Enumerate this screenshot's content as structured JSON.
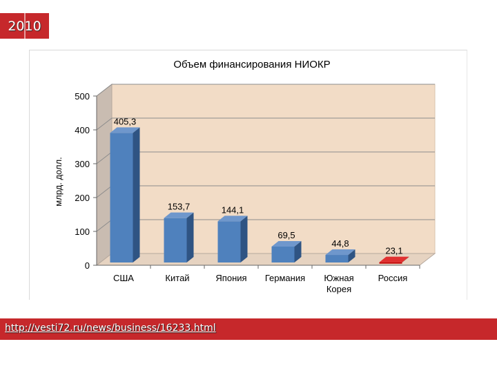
{
  "badge": {
    "year": "2010"
  },
  "source": {
    "url": "http://vesti72.ru/news/business/16233.html"
  },
  "colors": {
    "bar": "#4f81bd",
    "highlight": "#c00000",
    "wall": "#f2dcc6",
    "side": "#c9bcb1"
  },
  "chart_data": {
    "type": "bar",
    "title": "Объем финансирования НИОКР",
    "ylabel": "млрд. долл.",
    "xlabel": "",
    "ylim": [
      0,
      500
    ],
    "yticks": [
      "0",
      "100",
      "200",
      "300",
      "400",
      "500"
    ],
    "grid": true,
    "legend": "none",
    "categories": [
      "США",
      "Китай",
      "Япония",
      "Германия",
      "Южная Корея",
      "Россия"
    ],
    "category_lines": [
      [
        "США"
      ],
      [
        "Китай"
      ],
      [
        "Япония"
      ],
      [
        "Германия"
      ],
      [
        "Южная",
        "Корея"
      ],
      [
        "Россия"
      ]
    ],
    "values": [
      405.3,
      153.7,
      144.1,
      69.5,
      44.8,
      23.1
    ],
    "value_labels": [
      "405,3",
      "153,7",
      "144,1",
      "69,5",
      "44,8",
      "23,1"
    ],
    "highlight": "Россия"
  }
}
